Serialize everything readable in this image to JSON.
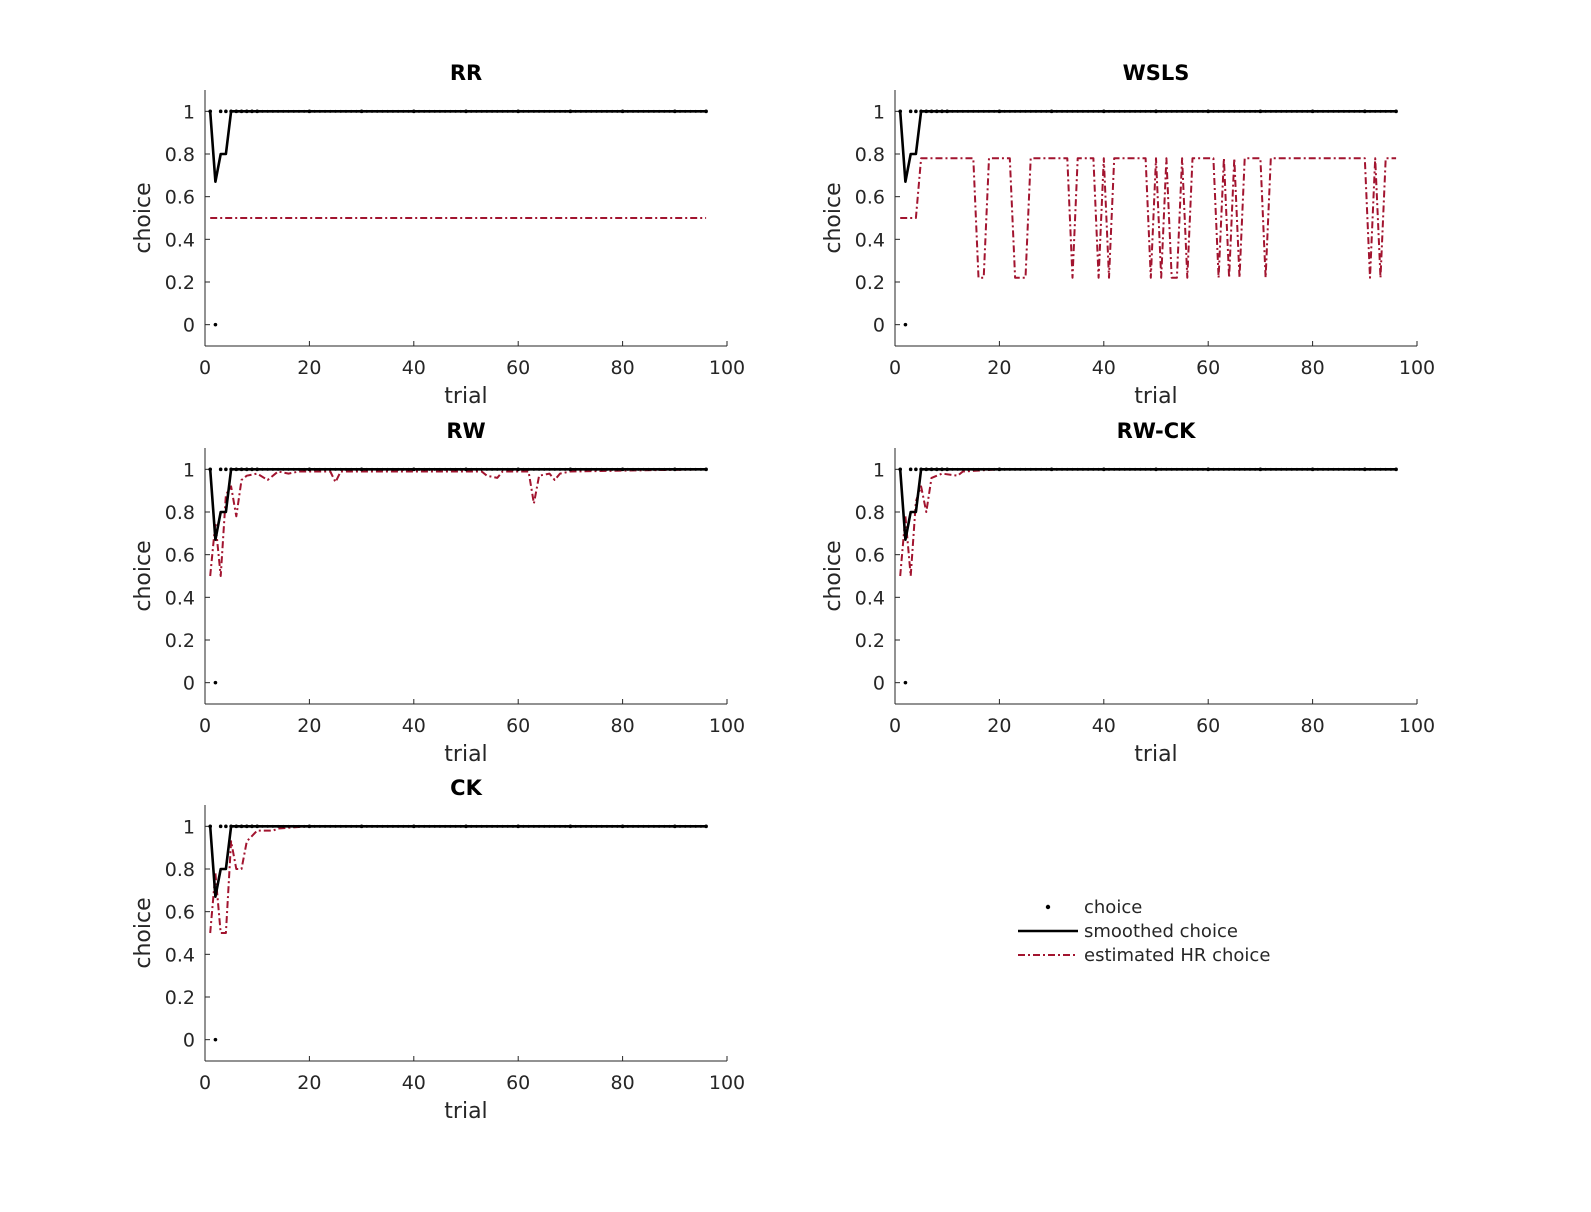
{
  "legend": {
    "entries": [
      {
        "label": "choice",
        "style": "dots",
        "color": "#000000"
      },
      {
        "label": "smoothed choice",
        "style": "solid",
        "color": "#000000"
      },
      {
        "label": "estimated HR choice",
        "style": "dashdot",
        "color": "#a2142f"
      }
    ]
  },
  "chart_data": [
    {
      "type": "line",
      "title": "RR",
      "xlabel": "trial",
      "ylabel": "choice",
      "xlim": [
        0,
        100
      ],
      "ylim": [
        -0.1,
        1.1
      ],
      "xticks": [
        0,
        20,
        40,
        60,
        80,
        100
      ],
      "yticks": [
        0,
        0.2,
        0.4,
        0.6,
        0.8,
        1
      ],
      "series": [
        {
          "name": "choice",
          "kind": "scatter",
          "points": [
            [
              1,
              1
            ],
            [
              2,
              0
            ],
            [
              3,
              1
            ],
            [
              4,
              1
            ],
            [
              5,
              1
            ],
            [
              6,
              1
            ],
            [
              7,
              1
            ],
            [
              8,
              1
            ],
            [
              9,
              1
            ],
            [
              10,
              1
            ],
            [
              20,
              1
            ],
            [
              30,
              1
            ],
            [
              40,
              1
            ],
            [
              50,
              1
            ],
            [
              60,
              1
            ],
            [
              70,
              1
            ],
            [
              80,
              1
            ],
            [
              90,
              1
            ],
            [
              96,
              1
            ]
          ]
        },
        {
          "name": "smoothed choice",
          "kind": "line",
          "points": [
            [
              1,
              1
            ],
            [
              2,
              0.67
            ],
            [
              3,
              0.8
            ],
            [
              4,
              0.8
            ],
            [
              5,
              1
            ],
            [
              96,
              1
            ]
          ]
        },
        {
          "name": "estimated HR choice",
          "kind": "line",
          "points": [
            [
              1,
              0.5
            ],
            [
              96,
              0.5
            ]
          ]
        }
      ]
    },
    {
      "type": "line",
      "title": "WSLS",
      "xlabel": "trial",
      "ylabel": "choice",
      "xlim": [
        0,
        100
      ],
      "ylim": [
        -0.1,
        1.1
      ],
      "xticks": [
        0,
        20,
        40,
        60,
        80,
        100
      ],
      "yticks": [
        0,
        0.2,
        0.4,
        0.6,
        0.8,
        1
      ],
      "series": [
        {
          "name": "choice",
          "kind": "scatter",
          "points": [
            [
              1,
              1
            ],
            [
              2,
              0
            ],
            [
              3,
              1
            ],
            [
              4,
              1
            ],
            [
              5,
              1
            ],
            [
              6,
              1
            ],
            [
              7,
              1
            ],
            [
              8,
              1
            ],
            [
              9,
              1
            ],
            [
              10,
              1
            ],
            [
              20,
              1
            ],
            [
              30,
              1
            ],
            [
              40,
              1
            ],
            [
              50,
              1
            ],
            [
              60,
              1
            ],
            [
              70,
              1
            ],
            [
              80,
              1
            ],
            [
              90,
              1
            ],
            [
              96,
              1
            ]
          ]
        },
        {
          "name": "smoothed choice",
          "kind": "line",
          "points": [
            [
              1,
              1
            ],
            [
              2,
              0.67
            ],
            [
              3,
              0.8
            ],
            [
              4,
              0.8
            ],
            [
              5,
              1
            ],
            [
              96,
              1
            ]
          ]
        },
        {
          "name": "estimated HR choice",
          "kind": "line",
          "points": [
            [
              1,
              0.5
            ],
            [
              4,
              0.5
            ],
            [
              5,
              0.78
            ],
            [
              15,
              0.78
            ],
            [
              16,
              0.22
            ],
            [
              17,
              0.22
            ],
            [
              18,
              0.78
            ],
            [
              22,
              0.78
            ],
            [
              23,
              0.22
            ],
            [
              25,
              0.22
            ],
            [
              26,
              0.78
            ],
            [
              33,
              0.78
            ],
            [
              34,
              0.22
            ],
            [
              35,
              0.78
            ],
            [
              38,
              0.78
            ],
            [
              39,
              0.22
            ],
            [
              40,
              0.78
            ],
            [
              41,
              0.22
            ],
            [
              42,
              0.78
            ],
            [
              48,
              0.78
            ],
            [
              49,
              0.22
            ],
            [
              50,
              0.78
            ],
            [
              51,
              0.22
            ],
            [
              52,
              0.78
            ],
            [
              53,
              0.22
            ],
            [
              54,
              0.22
            ],
            [
              55,
              0.78
            ],
            [
              56,
              0.22
            ],
            [
              57,
              0.78
            ],
            [
              61,
              0.78
            ],
            [
              62,
              0.22
            ],
            [
              63,
              0.78
            ],
            [
              64,
              0.22
            ],
            [
              65,
              0.78
            ],
            [
              66,
              0.22
            ],
            [
              67,
              0.78
            ],
            [
              70,
              0.78
            ],
            [
              71,
              0.22
            ],
            [
              72,
              0.78
            ],
            [
              90,
              0.78
            ],
            [
              91,
              0.22
            ],
            [
              92,
              0.78
            ],
            [
              93,
              0.22
            ],
            [
              94,
              0.78
            ],
            [
              96,
              0.78
            ]
          ]
        }
      ]
    },
    {
      "type": "line",
      "title": "RW",
      "xlabel": "trial",
      "ylabel": "choice",
      "xlim": [
        0,
        100
      ],
      "ylim": [
        -0.1,
        1.1
      ],
      "xticks": [
        0,
        20,
        40,
        60,
        80,
        100
      ],
      "yticks": [
        0,
        0.2,
        0.4,
        0.6,
        0.8,
        1
      ],
      "series": [
        {
          "name": "choice",
          "kind": "scatter",
          "points": [
            [
              1,
              1
            ],
            [
              2,
              0
            ],
            [
              3,
              1
            ],
            [
              4,
              1
            ],
            [
              5,
              1
            ],
            [
              6,
              1
            ],
            [
              7,
              1
            ],
            [
              8,
              1
            ],
            [
              9,
              1
            ],
            [
              10,
              1
            ],
            [
              20,
              1
            ],
            [
              30,
              1
            ],
            [
              40,
              1
            ],
            [
              50,
              1
            ],
            [
              60,
              1
            ],
            [
              70,
              1
            ],
            [
              80,
              1
            ],
            [
              90,
              1
            ],
            [
              96,
              1
            ]
          ]
        },
        {
          "name": "smoothed choice",
          "kind": "line",
          "points": [
            [
              1,
              1
            ],
            [
              2,
              0.67
            ],
            [
              3,
              0.8
            ],
            [
              4,
              0.8
            ],
            [
              5,
              1
            ],
            [
              96,
              1
            ]
          ]
        },
        {
          "name": "estimated HR choice",
          "kind": "line",
          "points": [
            [
              1,
              0.5
            ],
            [
              2,
              0.75
            ],
            [
              3,
              0.5
            ],
            [
              4,
              0.88
            ],
            [
              5,
              0.92
            ],
            [
              6,
              0.78
            ],
            [
              7,
              0.95
            ],
            [
              8,
              0.97
            ],
            [
              10,
              0.98
            ],
            [
              12,
              0.95
            ],
            [
              14,
              0.99
            ],
            [
              16,
              0.98
            ],
            [
              18,
              0.99
            ],
            [
              24,
              0.99
            ],
            [
              25,
              0.94
            ],
            [
              26,
              0.99
            ],
            [
              53,
              0.99
            ],
            [
              54,
              0.97
            ],
            [
              56,
              0.96
            ],
            [
              57,
              0.99
            ],
            [
              62,
              0.99
            ],
            [
              63,
              0.84
            ],
            [
              64,
              0.97
            ],
            [
              66,
              0.98
            ],
            [
              67,
              0.95
            ],
            [
              68,
              0.98
            ],
            [
              70,
              0.99
            ],
            [
              96,
              1
            ]
          ]
        }
      ]
    },
    {
      "type": "line",
      "title": "RW-CK",
      "xlabel": "trial",
      "ylabel": "choice",
      "xlim": [
        0,
        100
      ],
      "ylim": [
        -0.1,
        1.1
      ],
      "xticks": [
        0,
        20,
        40,
        60,
        80,
        100
      ],
      "yticks": [
        0,
        0.2,
        0.4,
        0.6,
        0.8,
        1
      ],
      "series": [
        {
          "name": "choice",
          "kind": "scatter",
          "points": [
            [
              1,
              1
            ],
            [
              2,
              0
            ],
            [
              3,
              1
            ],
            [
              4,
              1
            ],
            [
              5,
              1
            ],
            [
              6,
              1
            ],
            [
              7,
              1
            ],
            [
              8,
              1
            ],
            [
              9,
              1
            ],
            [
              10,
              1
            ],
            [
              20,
              1
            ],
            [
              30,
              1
            ],
            [
              40,
              1
            ],
            [
              50,
              1
            ],
            [
              60,
              1
            ],
            [
              70,
              1
            ],
            [
              80,
              1
            ],
            [
              90,
              1
            ],
            [
              96,
              1
            ]
          ]
        },
        {
          "name": "smoothed choice",
          "kind": "line",
          "points": [
            [
              1,
              1
            ],
            [
              2,
              0.67
            ],
            [
              3,
              0.8
            ],
            [
              4,
              0.8
            ],
            [
              5,
              1
            ],
            [
              96,
              1
            ]
          ]
        },
        {
          "name": "estimated HR choice",
          "kind": "line",
          "points": [
            [
              1,
              0.5
            ],
            [
              2,
              0.78
            ],
            [
              3,
              0.5
            ],
            [
              4,
              0.85
            ],
            [
              5,
              0.92
            ],
            [
              6,
              0.8
            ],
            [
              7,
              0.96
            ],
            [
              9,
              0.98
            ],
            [
              12,
              0.97
            ],
            [
              13,
              0.99
            ],
            [
              20,
              1
            ],
            [
              96,
              1
            ]
          ]
        }
      ]
    },
    {
      "type": "line",
      "title": "CK",
      "xlabel": "trial",
      "ylabel": "choice",
      "xlim": [
        0,
        100
      ],
      "ylim": [
        -0.1,
        1.1
      ],
      "xticks": [
        0,
        20,
        40,
        60,
        80,
        100
      ],
      "yticks": [
        0,
        0.2,
        0.4,
        0.6,
        0.8,
        1
      ],
      "series": [
        {
          "name": "choice",
          "kind": "scatter",
          "points": [
            [
              1,
              1
            ],
            [
              2,
              0
            ],
            [
              3,
              1
            ],
            [
              4,
              1
            ],
            [
              5,
              1
            ],
            [
              6,
              1
            ],
            [
              7,
              1
            ],
            [
              8,
              1
            ],
            [
              9,
              1
            ],
            [
              10,
              1
            ],
            [
              20,
              1
            ],
            [
              30,
              1
            ],
            [
              40,
              1
            ],
            [
              50,
              1
            ],
            [
              60,
              1
            ],
            [
              70,
              1
            ],
            [
              80,
              1
            ],
            [
              90,
              1
            ],
            [
              96,
              1
            ]
          ]
        },
        {
          "name": "smoothed choice",
          "kind": "line",
          "points": [
            [
              1,
              1
            ],
            [
              2,
              0.67
            ],
            [
              3,
              0.8
            ],
            [
              4,
              0.8
            ],
            [
              5,
              1
            ],
            [
              96,
              1
            ]
          ]
        },
        {
          "name": "estimated HR choice",
          "kind": "line",
          "points": [
            [
              1,
              0.5
            ],
            [
              2,
              0.78
            ],
            [
              3,
              0.5
            ],
            [
              4,
              0.5
            ],
            [
              5,
              0.93
            ],
            [
              6,
              0.8
            ],
            [
              7,
              0.8
            ],
            [
              8,
              0.93
            ],
            [
              10,
              0.98
            ],
            [
              13,
              0.98
            ],
            [
              14,
              0.99
            ],
            [
              20,
              1
            ],
            [
              96,
              1
            ]
          ]
        }
      ]
    }
  ]
}
